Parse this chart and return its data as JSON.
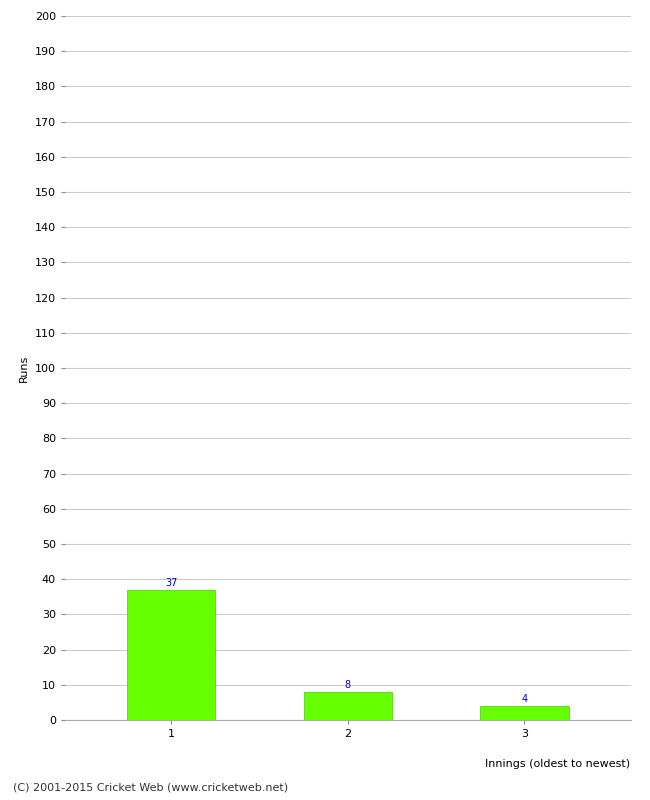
{
  "categories": [
    "1",
    "2",
    "3"
  ],
  "values": [
    37,
    8,
    4
  ],
  "bar_color": "#66ff00",
  "bar_edge_color": "#44cc00",
  "ylabel": "Runs",
  "xlabel": "Innings (oldest to newest)",
  "ylim": [
    0,
    200
  ],
  "yticks": [
    0,
    10,
    20,
    30,
    40,
    50,
    60,
    70,
    80,
    90,
    100,
    110,
    120,
    130,
    140,
    150,
    160,
    170,
    180,
    190,
    200
  ],
  "value_label_color": "#0000cc",
  "value_label_fontsize": 7,
  "tick_label_fontsize": 8,
  "ylabel_fontsize": 8,
  "xlabel_fontsize": 8,
  "footer_text": "(C) 2001-2015 Cricket Web (www.cricketweb.net)",
  "footer_fontsize": 8,
  "background_color": "#ffffff",
  "grid_color": "#cccccc",
  "bar_width": 0.5
}
